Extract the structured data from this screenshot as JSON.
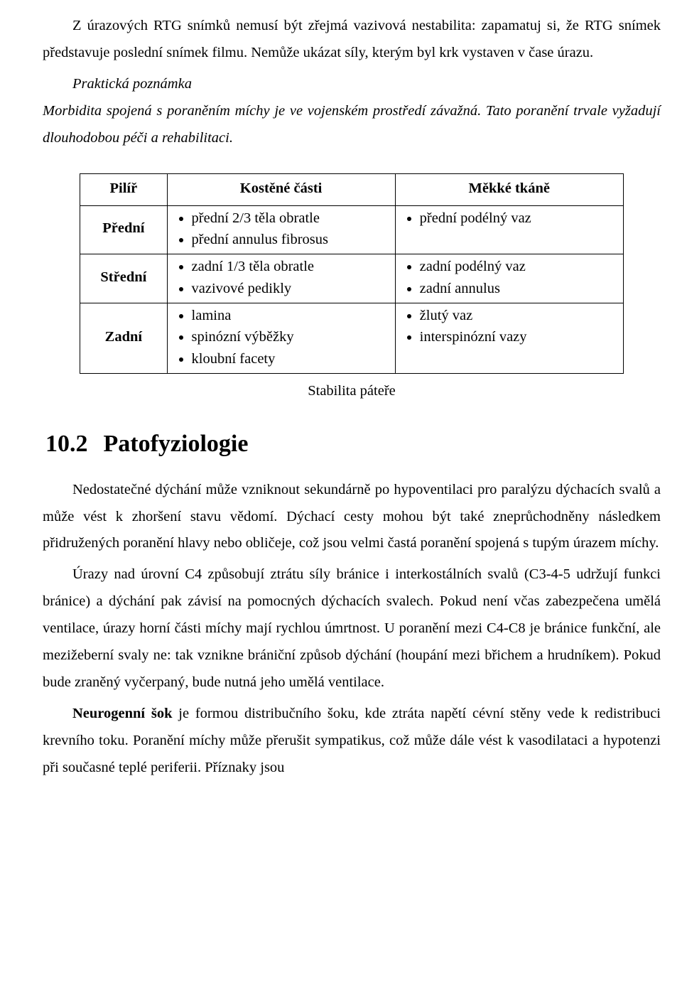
{
  "p1": "Z úrazových RTG snímků nemusí být zřejmá vazivová nestabilita: zapamatuj si, že RTG snímek představuje poslední snímek filmu. Nemůže ukázat síly, kterým byl krk vystaven v čase úrazu.",
  "note_title": "Praktická poznámka",
  "note_body": "Morbidita spojená s poraněním míchy je ve vojenském prostředí závažná. Tato poranění trvale vyžadují dlouhodobou péči a rehabilitaci.",
  "table": {
    "headers": {
      "pilir": "Pilíř",
      "kost": "Kostěné části",
      "tkane": "Měkké tkáně"
    },
    "rows": [
      {
        "pilir": "Přední",
        "kost": [
          "přední 2/3 těla obratle",
          "přední annulus fibrosus"
        ],
        "tkane": [
          "přední podélný vaz"
        ]
      },
      {
        "pilir": "Střední",
        "kost": [
          "zadní 1/3 těla obratle",
          "vazivové pedikly"
        ],
        "tkane": [
          "zadní podélný vaz",
          "zadní annulus"
        ]
      },
      {
        "pilir": "Zadní",
        "kost": [
          "lamina",
          "spinózní výběžky",
          "kloubní facety"
        ],
        "tkane": [
          "žlutý vaz",
          "interspinózní vazy"
        ]
      }
    ],
    "caption": "Stabilita páteře"
  },
  "section": {
    "num": "10.2",
    "title": "Patofyziologie"
  },
  "p2": "Nedostatečné dýchání může vzniknout sekundárně po hypoventilaci pro paralýzu dýchacích svalů a může vést k zhoršení stavu vědomí. Dýchací cesty mohou být také zneprůchodněny následkem přidružených poranění hlavy nebo obličeje, což jsou velmi častá poranění spojená s tupým úrazem míchy.",
  "p3": "Úrazy nad úrovní C4 způsobují ztrátu síly bránice i interkostálních svalů (C3-4-5 udržují funkci bránice) a dýchání pak závisí na pomocných dýchacích svalech. Pokud není včas zabezpečena umělá ventilace, úrazy horní části míchy mají rychlou úmrtnost. U poranění mezi C4-C8 je bránice funkční, ale mezižeberní svaly ne: tak vznikne brániční způsob dýchání (houpání mezi břichem a hrudníkem). Pokud bude zraněný vyčerpaný, bude nutná jeho umělá ventilace.",
  "p4_bold": "Neurogenní šok",
  "p4_rest": " je formou distribučního šoku, kde ztráta napětí cévní stěny vede k redistribuci krevního toku. Poranění míchy může přerušit sympatikus, což může dále vést k vasodilataci a hypotenzi při současné teplé periferii. Příznaky jsou"
}
